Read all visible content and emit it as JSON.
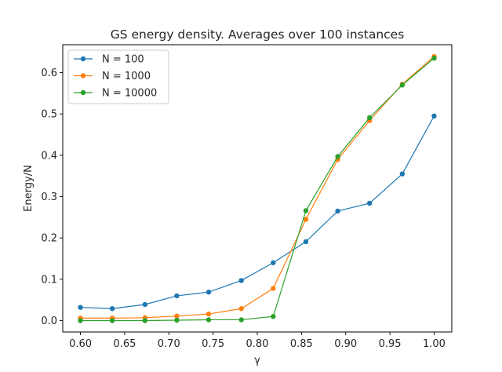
{
  "chart_data": {
    "type": "line",
    "title": "GS energy density. Averages over 100 instances",
    "xlabel": "γ",
    "ylabel": "Energy/N",
    "xlim": [
      0.58,
      1.02
    ],
    "ylim": [
      -0.0275,
      0.6675
    ],
    "x_ticks": [
      "0.60",
      "0.65",
      "0.70",
      "0.75",
      "0.80",
      "0.85",
      "0.90",
      "0.95",
      "1.00"
    ],
    "y_ticks": [
      "0.0",
      "0.1",
      "0.2",
      "0.3",
      "0.4",
      "0.5",
      "0.6"
    ],
    "grid": false,
    "legend_position": "top-left",
    "x": [
      0.6,
      0.636,
      0.673,
      0.709,
      0.745,
      0.782,
      0.818,
      0.855,
      0.891,
      0.927,
      0.964,
      1.0
    ],
    "series": [
      {
        "name": "N = 100",
        "color": "#1f77b4",
        "values": [
          0.032,
          0.029,
          0.039,
          0.06,
          0.069,
          0.097,
          0.14,
          0.191,
          0.265,
          0.284,
          0.355,
          0.495
        ]
      },
      {
        "name": "N = 1000",
        "color": "#ff7f0e",
        "values": [
          0.006,
          0.006,
          0.007,
          0.011,
          0.016,
          0.029,
          0.078,
          0.245,
          0.39,
          0.484,
          0.572,
          0.639
        ]
      },
      {
        "name": "N = 10000",
        "color": "#2ca02c",
        "values": [
          0.0,
          0.0,
          0.0,
          0.001,
          0.002,
          0.002,
          0.01,
          0.266,
          0.397,
          0.491,
          0.57,
          0.635
        ]
      }
    ]
  }
}
